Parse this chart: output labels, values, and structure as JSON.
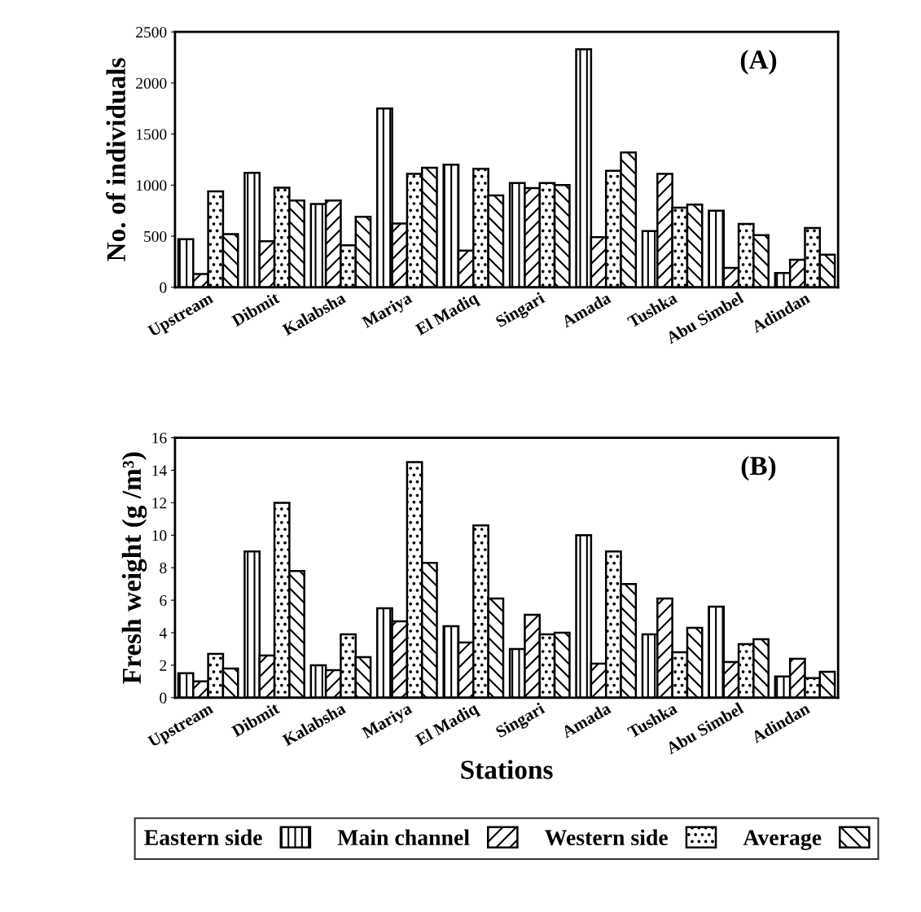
{
  "chart_data": [
    {
      "type": "bar",
      "annotations": [
        "(A)"
      ],
      "ylabel": "No. of individuals",
      "categories": [
        "Upstream",
        "Dibmit",
        "Kalabsha",
        "Mariya",
        "El Madiq",
        "Singari",
        "Amada",
        "Tushka",
        "Abu Simbel",
        "Adindan"
      ],
      "series": [
        {
          "color": "#000000",
          "values": [
            470,
            1120,
            815,
            1750,
            1200,
            1020,
            2330,
            550,
            750,
            140
          ]
        },
        {
          "color": "#000000",
          "values": [
            130,
            450,
            850,
            625,
            360,
            970,
            490,
            1110,
            190,
            270
          ]
        },
        {
          "color": "#000000",
          "values": [
            940,
            975,
            410,
            1110,
            1160,
            1020,
            1140,
            780,
            620,
            580
          ]
        },
        {
          "color": "#000000",
          "values": [
            520,
            850,
            690,
            1170,
            900,
            1000,
            1320,
            810,
            510,
            320
          ]
        }
      ],
      "ylim": [
        0,
        2500
      ],
      "yticks": [
        0,
        500,
        1000,
        1500,
        2000,
        2500
      ],
      "grid": false,
      "legend": false
    },
    {
      "type": "bar",
      "annotations": [
        "(B)"
      ],
      "ylabel": "Fresh weight (g /m³)",
      "xlabel": "Stations",
      "categories": [
        "Upstream",
        "Dibmit",
        "Kalabsha",
        "Mariya",
        "El Madiq",
        "Singari",
        "Amada",
        "Tushka",
        "Abu Simbel",
        "Adindan"
      ],
      "series": [
        {
          "name": "Eastern side",
          "color": "#000000",
          "values": [
            1.5,
            9.0,
            2.0,
            5.5,
            4.4,
            3.0,
            10.0,
            3.9,
            5.6,
            1.3
          ]
        },
        {
          "name": "Main channel",
          "color": "#000000",
          "values": [
            1.0,
            2.6,
            1.7,
            4.7,
            3.4,
            5.1,
            2.1,
            6.1,
            2.2,
            2.4
          ]
        },
        {
          "name": "Western side",
          "color": "#000000",
          "values": [
            2.7,
            12.0,
            3.9,
            14.5,
            10.6,
            3.9,
            9.0,
            2.8,
            3.3,
            1.2
          ]
        },
        {
          "name": "Average",
          "color": "#000000",
          "values": [
            1.8,
            7.8,
            2.5,
            8.3,
            6.1,
            4.0,
            7.0,
            4.3,
            3.6,
            1.6
          ]
        }
      ],
      "ylim": [
        0,
        16
      ],
      "yticks": [
        0,
        2,
        4,
        6,
        8,
        10,
        12,
        14,
        16
      ],
      "grid": false,
      "legend": "bottom"
    }
  ]
}
